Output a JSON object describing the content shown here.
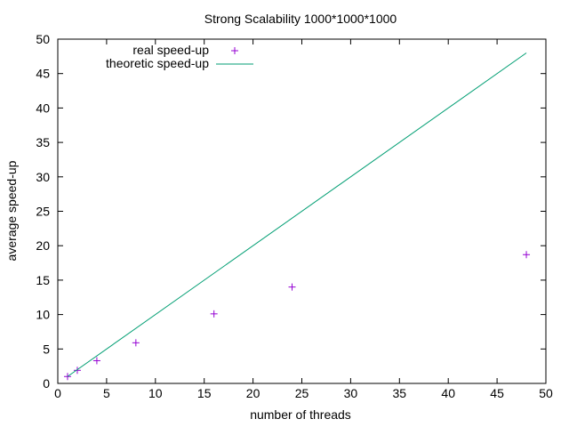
{
  "chart_data": {
    "type": "scatter",
    "title": "Strong Scalability 1000*1000*1000",
    "xlabel": "number of threads",
    "ylabel": "average speed-up",
    "xlim": [
      0,
      50
    ],
    "ylim": [
      0,
      50
    ],
    "xticks": [
      0,
      5,
      10,
      15,
      20,
      25,
      30,
      35,
      40,
      45,
      50
    ],
    "yticks": [
      0,
      5,
      10,
      15,
      20,
      25,
      30,
      35,
      40,
      45,
      50
    ],
    "grid": false,
    "legend_position": "top-left",
    "series": [
      {
        "name": "real speed-up",
        "type": "scatter",
        "marker": "plus",
        "color": "#9400d3",
        "x": [
          1,
          2,
          4,
          8,
          16,
          24,
          48
        ],
        "y": [
          1.0,
          1.9,
          3.3,
          5.9,
          10.1,
          14.0,
          18.7
        ]
      },
      {
        "name": "theoretic speed-up",
        "type": "line",
        "color": "#009e73",
        "x": [
          1,
          48
        ],
        "y": [
          1,
          48
        ]
      }
    ]
  }
}
